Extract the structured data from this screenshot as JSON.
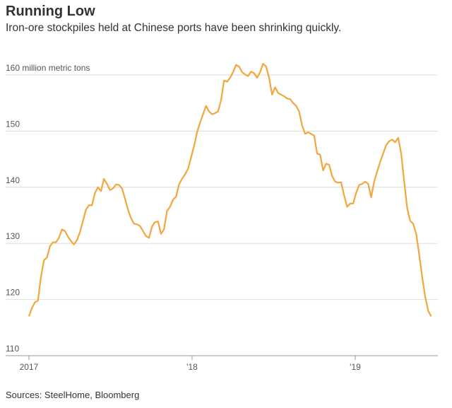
{
  "chart_data": {
    "type": "line",
    "title": "Running Low",
    "subtitle": "Iron-ore stockpiles held at Chinese ports have been shrinking quickly.",
    "source": "Sources: SteelHome, Bloomberg",
    "x": [
      2017,
      2017.0184,
      2017.0368,
      2017.0552,
      2017.0736,
      2017.092,
      2017.1104,
      2017.1288,
      2017.1472,
      2017.1656,
      2017.184,
      2017.2024,
      2017.2208,
      2017.2392,
      2017.2576,
      2017.276,
      2017.2944,
      2017.3128,
      2017.3312,
      2017.3496,
      2017.368,
      2017.3864,
      2017.4048,
      2017.4232,
      2017.4416,
      2017.46,
      2017.4784,
      2017.4968,
      2017.5152,
      2017.5336,
      2017.552,
      2017.5704,
      2017.5888,
      2017.6072,
      2017.6256,
      2017.644,
      2017.6624,
      2017.6808,
      2017.6992,
      2017.7176,
      2017.736,
      2017.7544,
      2017.7728,
      2017.7912,
      2017.8096,
      2017.828,
      2017.8464,
      2017.8648,
      2017.8832,
      2017.9016,
      2017.92,
      2017.9384,
      2017.9568,
      2017.9752,
      2017.9936,
      2018.012,
      2018.0304,
      2018.0488,
      2018.0672,
      2018.0856,
      2018.104,
      2018.1224,
      2018.1408,
      2018.1592,
      2018.1776,
      2018.196,
      2018.2144,
      2018.2328,
      2018.2512,
      2018.2696,
      2018.288,
      2018.3064,
      2018.3248,
      2018.3432,
      2018.3616,
      2018.38,
      2018.3984,
      2018.4168,
      2018.4352,
      2018.4536,
      2018.472,
      2018.4904,
      2018.5088,
      2018.5272,
      2018.5456,
      2018.564,
      2018.5824,
      2018.6008,
      2018.6192,
      2018.6376,
      2018.656,
      2018.6744,
      2018.6928,
      2018.7112,
      2018.7296,
      2018.748,
      2018.7664,
      2018.7848,
      2018.8032,
      2018.8216,
      2018.84,
      2018.8584,
      2018.8768,
      2018.8952,
      2018.9136,
      2018.932,
      2018.9504,
      2018.9688,
      2018.9872,
      2019.0056,
      2019.024,
      2019.0424,
      2019.0608,
      2019.0792,
      2019.0976,
      2019.116,
      2019.1344,
      2019.1528,
      2019.1712,
      2019.1896,
      2019.208,
      2019.2264,
      2019.2448,
      2019.2632,
      2019.2816,
      2019.3,
      2019.3184,
      2019.3368,
      2019.3552,
      2019.3736,
      2019.392,
      2019.4104,
      2019.4288,
      2019.4472,
      2019.4656
    ],
    "series": [
      {
        "name": "Iron-ore stockpiles",
        "color": "#f4a63e",
        "values": [
          117,
          118.5,
          119.5,
          119.8,
          124,
          127,
          127.5,
          129.5,
          130.2,
          130.2,
          131,
          132.5,
          132.2,
          131.2,
          130.4,
          129.8,
          130.6,
          132,
          134,
          136,
          136.8,
          136.8,
          139,
          140,
          139.3,
          141.5,
          140.6,
          139.5,
          139.8,
          140.5,
          140.4,
          139.8,
          138,
          136,
          134.5,
          133.5,
          133.4,
          133.1,
          132.2,
          131.3,
          131,
          133,
          133.8,
          133.9,
          131.7,
          132.5,
          135.8,
          136.5,
          137.8,
          138.3,
          140.5,
          141.5,
          142.3,
          143.3,
          145.3,
          147.3,
          149.8,
          151.5,
          153,
          154.5,
          153.5,
          153,
          153.2,
          153.5,
          155.5,
          159,
          158.8,
          159.5,
          160.5,
          161.8,
          161.5,
          160.5,
          160.1,
          159.8,
          160.6,
          160.3,
          159.5,
          160.5,
          162,
          161.5,
          159.5,
          156.5,
          157.8,
          156.8,
          156.5,
          156.2,
          155.8,
          155.7,
          155,
          154.5,
          153.5,
          151,
          149.5,
          149.8,
          149.5,
          149.2,
          146,
          145.8,
          143,
          144.2,
          144,
          142,
          141,
          140.8,
          140.9,
          138.5,
          136.5,
          137.1,
          137.1,
          139,
          140.4,
          140.6,
          141,
          140.6,
          138.2,
          141,
          142.8,
          144.5,
          146,
          147.5,
          148.2,
          148.5,
          148,
          148.8,
          146,
          141,
          136.3,
          134,
          133.5,
          131.7,
          128,
          124,
          120.5,
          118,
          117
        ]
      }
    ],
    "xlim": [
      2016.93,
      2019.5
    ],
    "xticks": [
      {
        "value": 2017,
        "label": "2017"
      },
      {
        "value": 2018,
        "label": "'18"
      },
      {
        "value": 2019,
        "label": "'19"
      }
    ],
    "ylim": [
      110,
      163
    ],
    "yticks": [
      110,
      120,
      130,
      140,
      150,
      {
        "value": 160,
        "label": "160 million metric tons"
      }
    ],
    "grid": true
  }
}
